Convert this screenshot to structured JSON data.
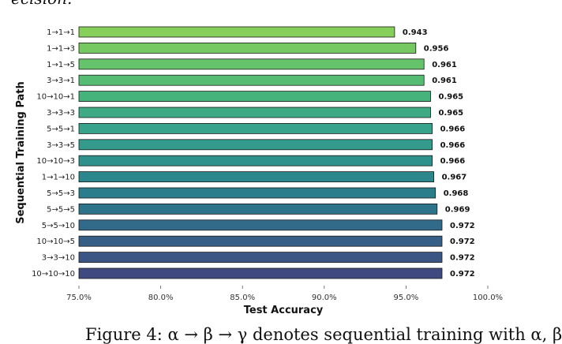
{
  "page": {
    "top_fragment": "ecision.",
    "bottom_fragment": "Figure 4: α → β → γ denotes sequential training with α, β"
  },
  "chart_data": {
    "type": "bar",
    "orientation": "horizontal",
    "title": "",
    "xlabel": "Test Accuracy",
    "ylabel": "Sequential Training Path",
    "xlim": [
      0.75,
      1.0
    ],
    "xticks": [
      0.75,
      0.8,
      0.85,
      0.9,
      0.95,
      1.0
    ],
    "xtick_labels": [
      "75.0%",
      "80.0%",
      "85.0%",
      "90.0%",
      "95.0%",
      "100.0%"
    ],
    "grid": false,
    "legend": "none",
    "colormap": "viridis (light green to dark blue)",
    "categories": [
      "1→1→1",
      "1→1→3",
      "1→1→5",
      "3→3→1",
      "10→10→1",
      "3→3→3",
      "5→5→1",
      "3→3→5",
      "10→10→3",
      "1→1→10",
      "5→5→3",
      "5→5→5",
      "5→5→10",
      "10→10→5",
      "3→3→10",
      "10→10→10"
    ],
    "values": [
      0.943,
      0.956,
      0.961,
      0.961,
      0.965,
      0.965,
      0.966,
      0.966,
      0.966,
      0.967,
      0.968,
      0.969,
      0.972,
      0.972,
      0.972,
      0.972
    ],
    "value_labels": [
      "0.943",
      "0.956",
      "0.961",
      "0.961",
      "0.965",
      "0.965",
      "0.966",
      "0.966",
      "0.966",
      "0.967",
      "0.968",
      "0.969",
      "0.972",
      "0.972",
      "0.972",
      "0.972"
    ],
    "colors": [
      "#86cf5a",
      "#76c961",
      "#65c36b",
      "#55bc74",
      "#47b37c",
      "#3eab85",
      "#38a38b",
      "#339a8c",
      "#2f918c",
      "#2c878c",
      "#2a7e8c",
      "#2d748b",
      "#326a8a",
      "#365f88",
      "#3b5585",
      "#404a81"
    ]
  }
}
